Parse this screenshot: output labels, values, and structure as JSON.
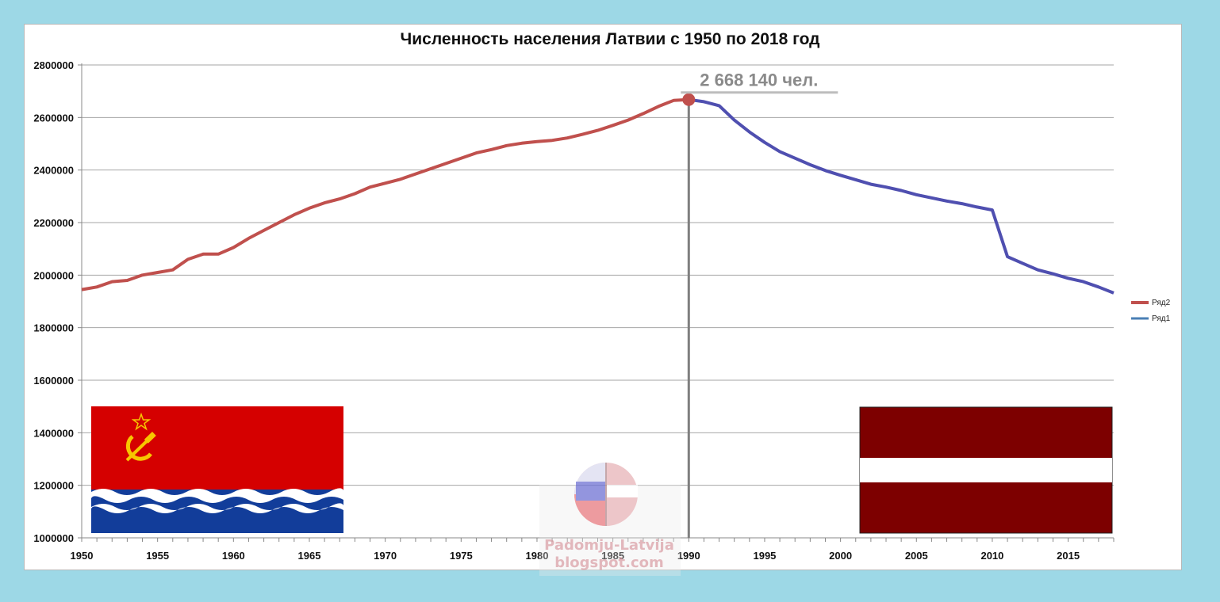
{
  "chart_data": {
    "type": "line",
    "title": "Численность населения Латвии с 1950 по 2018 год",
    "xlabel": "",
    "ylabel": "",
    "ylim": [
      1000000,
      2800000
    ],
    "xlim": [
      1950,
      2018
    ],
    "y_ticks": [
      "2800000",
      "2600000",
      "2400000",
      "2200000",
      "2000000",
      "1800000",
      "1600000",
      "1400000",
      "1200000",
      "1000000"
    ],
    "x_ticks": [
      "1950",
      "1955",
      "1960",
      "1965",
      "1970",
      "1975",
      "1980",
      "1985",
      "1990",
      "1995",
      "2000",
      "2005",
      "2010",
      "2015"
    ],
    "grid": true,
    "legend_position": "right",
    "series": [
      {
        "name": "Ряд2",
        "color": "#c0504d",
        "x": [
          1950,
          1951,
          1952,
          1953,
          1954,
          1955,
          1956,
          1957,
          1958,
          1959,
          1960,
          1961,
          1962,
          1963,
          1964,
          1965,
          1966,
          1967,
          1968,
          1969,
          1970,
          1971,
          1972,
          1973,
          1974,
          1975,
          1976,
          1977,
          1978,
          1979,
          1980,
          1981,
          1982,
          1983,
          1984,
          1985,
          1986,
          1987,
          1988,
          1989,
          1990
        ],
        "values": [
          1945000,
          1955000,
          1975000,
          1980000,
          2000000,
          2010000,
          2020000,
          2060000,
          2080000,
          2080000,
          2105000,
          2140000,
          2170000,
          2200000,
          2230000,
          2255000,
          2275000,
          2290000,
          2310000,
          2335000,
          2350000,
          2365000,
          2385000,
          2405000,
          2425000,
          2445000,
          2465000,
          2478000,
          2493000,
          2502000,
          2508000,
          2513000,
          2522000,
          2536000,
          2551000,
          2570000,
          2590000,
          2615000,
          2642000,
          2665000,
          2668140
        ]
      },
      {
        "name": "Ряд1",
        "color": "#4f4fb0",
        "x": [
          1990,
          1991,
          1992,
          1993,
          1994,
          1995,
          1996,
          1997,
          1998,
          1999,
          2000,
          2001,
          2002,
          2003,
          2004,
          2005,
          2006,
          2007,
          2008,
          2009,
          2010,
          2011,
          2012,
          2013,
          2014,
          2015,
          2016,
          2017,
          2018
        ],
        "values": [
          2668140,
          2660000,
          2645000,
          2590000,
          2545000,
          2505000,
          2470000,
          2445000,
          2420000,
          2398000,
          2380000,
          2363000,
          2346000,
          2335000,
          2322000,
          2306000,
          2294000,
          2282000,
          2272000,
          2259000,
          2248000,
          2070000,
          2045000,
          2020000,
          2005000,
          1988000,
          1975000,
          1955000,
          1932000
        ]
      }
    ],
    "annotations": [
      {
        "text": "2 668 140 чел.",
        "x": 1990,
        "y": 2668140
      }
    ]
  },
  "watermark": {
    "line1": "Padomju-Latvija",
    "line2": "blogspot.com"
  },
  "flags": {
    "left": "latvian-ssr-flag",
    "right": "latvia-flag",
    "colors": {
      "ssr_red": "#d50000",
      "ssr_gold": "#f7c600",
      "ssr_blue": "#123d9a",
      "lv_maroon": "#7d0000"
    }
  }
}
